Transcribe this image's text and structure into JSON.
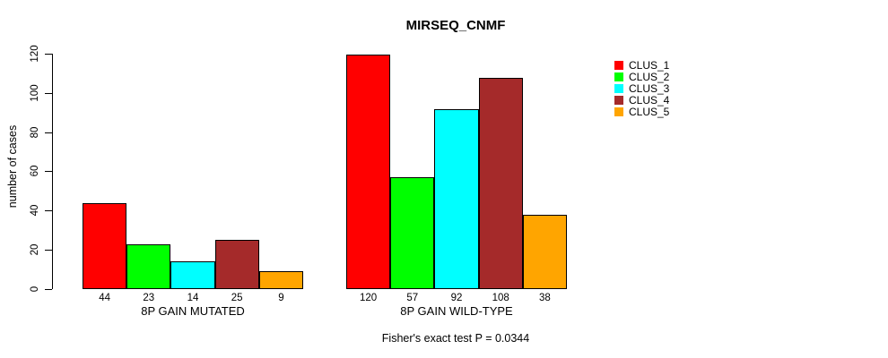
{
  "chart_data": {
    "type": "bar",
    "title": "MIRSEQ_CNMF",
    "ylabel": "number of cases",
    "ylim": [
      0,
      120
    ],
    "yticks": [
      0,
      20,
      40,
      60,
      80,
      100,
      120
    ],
    "grid": false,
    "legend_position": "right",
    "groups": [
      {
        "label": "8P GAIN MUTATED",
        "values": [
          44,
          23,
          14,
          25,
          9
        ]
      },
      {
        "label": "8P GAIN WILD-TYPE",
        "values": [
          120,
          57,
          92,
          108,
          38
        ]
      }
    ],
    "series": [
      {
        "name": "CLUS_1",
        "color": "#FF0000"
      },
      {
        "name": "CLUS_2",
        "color": "#00FF00"
      },
      {
        "name": "CLUS_3",
        "color": "#00FFFF"
      },
      {
        "name": "CLUS_4",
        "color": "#A52A2A"
      },
      {
        "name": "CLUS_5",
        "color": "#FFA500"
      }
    ],
    "legend": [
      {
        "label": "CLUS_1",
        "color": "#FF0000"
      },
      {
        "label": "CLUS_2",
        "color": "#00FF00"
      },
      {
        "label": "CLUS_3",
        "color": "#00FFFF"
      },
      {
        "label": "CLUS_4",
        "color": "#A52A2A"
      },
      {
        "label": "CLUS_5",
        "color": "#FFA500"
      }
    ],
    "footnote": "Fisher's exact test P = 0.0344",
    "bar_border_color": "#000000",
    "axis_color": "#000000"
  }
}
